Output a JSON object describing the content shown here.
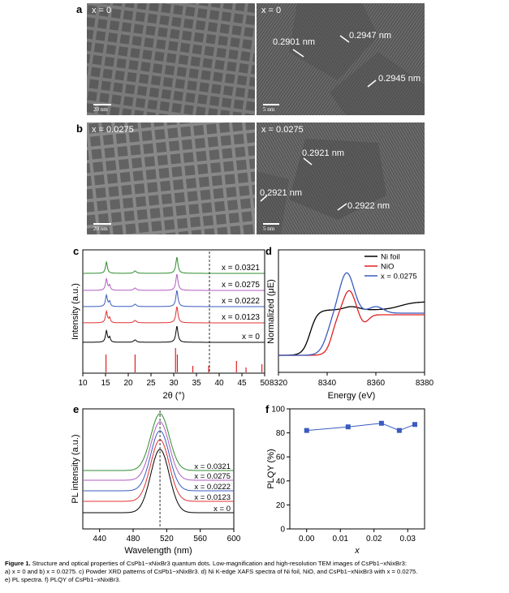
{
  "panels": {
    "a": "a",
    "b": "b",
    "c": "c",
    "d": "d",
    "e": "e",
    "f": "f"
  },
  "tem": {
    "a_left_label": "x = 0",
    "a_right_label": "x = 0",
    "a_left_scale": "20 nm",
    "a_right_scale": "5 nm",
    "a_spacings": [
      "0.2901 nm",
      "0.2947 nm",
      "0.2945 nm"
    ],
    "b_left_label": "x = 0.0275",
    "b_right_label": "x = 0.0275",
    "b_left_scale": "20 nm",
    "b_right_scale": "5 nm",
    "b_spacings": [
      "0.2921 nm",
      "0.2921 nm",
      "0.2922 nm"
    ]
  },
  "chart_data": [
    {
      "panel": "c",
      "type": "line",
      "xlabel": "2θ (°)",
      "ylabel": "Intensity (a.u.)",
      "xlim": [
        10,
        50
      ],
      "xticks": [
        10,
        15,
        20,
        25,
        30,
        35,
        40,
        45,
        50
      ],
      "series": [
        {
          "name": "x = 0.0321",
          "color": "#2e8b2e"
        },
        {
          "name": "x = 0.0275",
          "color": "#b05cc0"
        },
        {
          "name": "x = 0.0222",
          "color": "#3a5bc0"
        },
        {
          "name": "x = 0.0123",
          "color": "#e03030"
        },
        {
          "name": "x = 0",
          "color": "#000000"
        }
      ],
      "peaks_2theta": [
        15.2,
        21.5,
        30.7
      ],
      "reference_lines": [
        15.1,
        21.5,
        30.4,
        30.8,
        34.2,
        37.7,
        43.8,
        45.9,
        49.4
      ]
    },
    {
      "panel": "d",
      "type": "line",
      "xlabel": "Energy (eV)",
      "ylabel": "Normalized (μE)",
      "xlim": [
        8320,
        8380
      ],
      "xticks": [
        8320,
        8340,
        8360,
        8380
      ],
      "legend_position": "top-right",
      "series": [
        {
          "name": "Ni foil",
          "color": "#000000"
        },
        {
          "name": "NiO",
          "color": "#e02020"
        },
        {
          "name": "x = 0.0275",
          "color": "#3a5bc0"
        }
      ]
    },
    {
      "panel": "e",
      "type": "line",
      "xlabel": "Wavelength (nm)",
      "ylabel": "PL intensity (a.u.)",
      "xlim": [
        420,
        600
      ],
      "xticks": [
        440,
        480,
        520,
        560,
        600
      ],
      "peak_nm": 512,
      "series": [
        {
          "name": "x = 0.0321",
          "color": "#2e8b2e"
        },
        {
          "name": "x = 0.0275",
          "color": "#b05cc0"
        },
        {
          "name": "x = 0.0222",
          "color": "#3a5bc0"
        },
        {
          "name": "x = 0.0123",
          "color": "#e03030"
        },
        {
          "name": "x = 0",
          "color": "#000000"
        }
      ]
    },
    {
      "panel": "f",
      "type": "scatter",
      "xlabel": "x",
      "ylabel": "PLQY (%)",
      "xlim": [
        -0.005,
        0.035
      ],
      "ylim": [
        0,
        100
      ],
      "xticks": [
        0.0,
        0.01,
        0.02,
        0.03
      ],
      "xtick_labels": [
        "0.00",
        "0.01",
        "0.02",
        "0.03"
      ],
      "yticks": [
        0,
        20,
        40,
        60,
        80,
        100
      ],
      "x": [
        0,
        0.0123,
        0.0222,
        0.0275,
        0.0321
      ],
      "y": [
        82,
        85,
        88,
        82,
        87
      ],
      "color": "#3a5bc0"
    }
  ],
  "caption": {
    "label": "Figure 1.",
    "line1": "Structure and optical properties of CsPb1−xNixBr3 quantum dots. Low-magnification and high-resolution TEM images of CsPb1−xNixBr3:",
    "line2": "a) x = 0 and b) x = 0.0275. c) Powder XRD patterns of CsPb1−xNixBr3. d) Ni K-edge XAFS spectra of Ni foil, NiO, and CsPb1−xNixBr3 with x = 0.0275.",
    "line3": "e) PL spectra. f) PLQY of CsPb1−xNixBr3."
  }
}
